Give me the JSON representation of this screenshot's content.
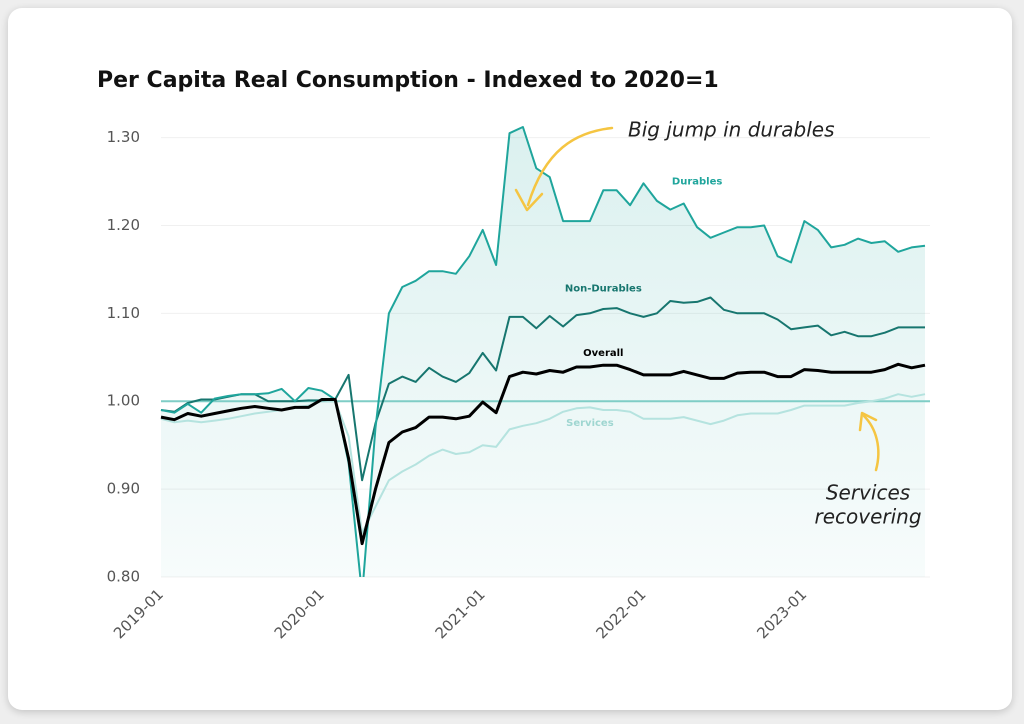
{
  "chart_data": {
    "type": "line",
    "title": "Per Capita Real Consumption - Indexed to 2020=1",
    "x": [
      "2019-01",
      "2019-02",
      "2019-03",
      "2019-04",
      "2019-05",
      "2019-06",
      "2019-07",
      "2019-08",
      "2019-09",
      "2019-10",
      "2019-11",
      "2019-12",
      "2020-01",
      "2020-02",
      "2020-03",
      "2020-04",
      "2020-05",
      "2020-06",
      "2020-07",
      "2020-08",
      "2020-09",
      "2020-10",
      "2020-11",
      "2020-12",
      "2021-01",
      "2021-02",
      "2021-03",
      "2021-04",
      "2021-05",
      "2021-06",
      "2021-07",
      "2021-08",
      "2021-09",
      "2021-10",
      "2021-11",
      "2021-12",
      "2022-01",
      "2022-02",
      "2022-03",
      "2022-04",
      "2022-05",
      "2022-06",
      "2022-07",
      "2022-08",
      "2022-09",
      "2022-10",
      "2022-11",
      "2022-12",
      "2023-01",
      "2023-02",
      "2023-03",
      "2023-04",
      "2023-05",
      "2023-06",
      "2023-07",
      "2023-08",
      "2023-09",
      "2023-10"
    ],
    "xticks": [
      "2019-01",
      "2020-01",
      "2021-01",
      "2022-01",
      "2023-01"
    ],
    "ylim": [
      0.8,
      1.32
    ],
    "yticks": [
      {
        "value": 0.8,
        "label": "0.80"
      },
      {
        "value": 0.9,
        "label": "0.90"
      },
      {
        "value": 1.0,
        "label": "1.00"
      },
      {
        "value": 1.1,
        "label": "1.10"
      },
      {
        "value": 1.2,
        "label": "1.20"
      },
      {
        "value": 1.3,
        "label": "1.30"
      }
    ],
    "grid": true,
    "reference_line": 1,
    "series": [
      {
        "name": "Durables",
        "color": "#1fa59c",
        "fill": true,
        "values": [
          0.99,
          0.987,
          0.997,
          0.987,
          1.003,
          1.006,
          1.008,
          1.008,
          1.009,
          1.014,
          1.0,
          1.015,
          1.012,
          1.002,
          0.93,
          0.78,
          0.97,
          1.1,
          1.13,
          1.137,
          1.148,
          1.148,
          1.145,
          1.165,
          1.195,
          1.155,
          1.305,
          1.312,
          1.265,
          1.255,
          1.205,
          1.205,
          1.205,
          1.24,
          1.24,
          1.223,
          1.248,
          1.228,
          1.218,
          1.225,
          1.198,
          1.186,
          1.192,
          1.198,
          1.198,
          1.2,
          1.165,
          1.158,
          1.205,
          1.195,
          1.175,
          1.178,
          1.185,
          1.18,
          1.182,
          1.17,
          1.175,
          1.177
        ]
      },
      {
        "name": "Non-Durables",
        "color": "#17766f",
        "values": [
          0.99,
          0.988,
          0.998,
          1.002,
          1.002,
          1.005,
          1.008,
          1.008,
          1.0,
          1.0,
          1.0,
          1.001,
          1.001,
          1.002,
          1.03,
          0.91,
          0.975,
          1.02,
          1.028,
          1.022,
          1.038,
          1.028,
          1.022,
          1.032,
          1.055,
          1.035,
          1.096,
          1.096,
          1.083,
          1.097,
          1.085,
          1.098,
          1.1,
          1.105,
          1.106,
          1.1,
          1.096,
          1.1,
          1.114,
          1.112,
          1.113,
          1.118,
          1.104,
          1.1,
          1.1,
          1.1,
          1.093,
          1.082,
          1.084,
          1.086,
          1.075,
          1.079,
          1.074,
          1.074,
          1.078,
          1.084,
          1.084,
          1.084
        ]
      },
      {
        "name": "Overall",
        "color": "#000000",
        "values": [
          0.982,
          0.979,
          0.986,
          0.983,
          0.986,
          0.989,
          0.992,
          0.994,
          0.992,
          0.99,
          0.993,
          0.993,
          1.002,
          1.002,
          0.935,
          0.838,
          0.9,
          0.953,
          0.965,
          0.97,
          0.982,
          0.982,
          0.98,
          0.983,
          0.999,
          0.987,
          1.028,
          1.033,
          1.031,
          1.035,
          1.033,
          1.039,
          1.039,
          1.041,
          1.041,
          1.036,
          1.03,
          1.03,
          1.03,
          1.034,
          1.03,
          1.026,
          1.026,
          1.032,
          1.033,
          1.033,
          1.028,
          1.028,
          1.036,
          1.035,
          1.033,
          1.033,
          1.033,
          1.033,
          1.036,
          1.042,
          1.038,
          1.041
        ]
      },
      {
        "name": "Services",
        "color": "#b5e3df",
        "values": [
          0.98,
          0.976,
          0.978,
          0.976,
          0.978,
          0.98,
          0.983,
          0.986,
          0.988,
          0.99,
          0.993,
          0.995,
          1.0,
          1.0,
          0.96,
          0.85,
          0.88,
          0.91,
          0.92,
          0.928,
          0.938,
          0.945,
          0.94,
          0.942,
          0.95,
          0.948,
          0.968,
          0.972,
          0.975,
          0.98,
          0.988,
          0.992,
          0.993,
          0.99,
          0.99,
          0.988,
          0.98,
          0.98,
          0.98,
          0.982,
          0.978,
          0.974,
          0.978,
          0.984,
          0.986,
          0.986,
          0.986,
          0.99,
          0.995,
          0.995,
          0.995,
          0.995,
          0.998,
          1.0,
          1.003,
          1.008,
          1.005,
          1.008
        ]
      }
    ],
    "series_labels": [
      {
        "series": 0,
        "at": "2022-05",
        "value": 1.25
      },
      {
        "series": 1,
        "at": "2021-10",
        "value": 1.128
      },
      {
        "series": 2,
        "at": "2021-10",
        "value": 1.055
      },
      {
        "series": 3,
        "at": "2021-09",
        "value": 0.975
      }
    ],
    "annotations": [
      {
        "text": [
          "Big jump in durables"
        ]
      },
      {
        "text": [
          "Services",
          "recovering"
        ]
      }
    ]
  }
}
